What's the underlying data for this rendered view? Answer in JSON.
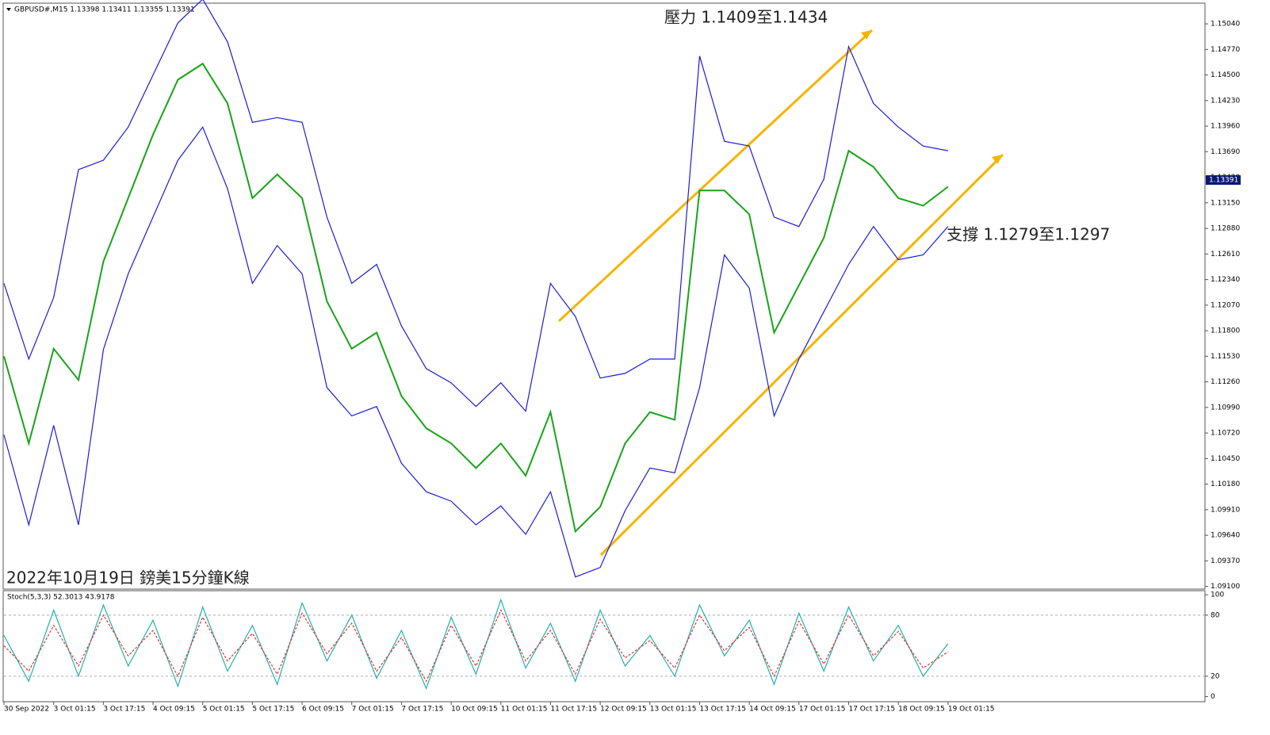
{
  "chart_data": [
    {
      "type": "line",
      "title": "GBPUSD#,M15  1.13398 1.13411 1.13355 1.13391",
      "annotations": [
        "壓力 1.1409至1.1434",
        "支撐 1.1279至1.1297",
        "2022年10月19日 鎊美15分鐘K線"
      ],
      "last_price": 1.13391,
      "x": [
        0,
        32,
        64,
        96,
        128,
        160,
        192,
        224,
        256,
        288,
        320,
        352,
        384,
        416,
        448,
        480,
        512,
        544,
        576,
        608,
        640,
        672,
        704,
        736,
        768,
        800,
        832,
        864,
        896,
        928,
        960,
        992,
        1024,
        1056,
        1088,
        1120,
        1152,
        1184,
        1216
      ],
      "series": [
        {
          "name": "Close",
          "color": "#19a319",
          "values": [
            1.1153,
            1.1061,
            1.1161,
            1.1128,
            1.1253,
            1.132,
            1.1387,
            1.1445,
            1.1462,
            1.142,
            1.132,
            1.1345,
            1.132,
            1.1211,
            1.1161,
            1.1178,
            1.1111,
            1.1077,
            1.1061,
            1.1035,
            1.1061,
            1.1027,
            1.1094,
            1.0968,
            1.0994,
            1.1061,
            1.1094,
            1.1086,
            1.1328,
            1.1328,
            1.1303,
            1.1178,
            1.1228,
            1.1278,
            1.137,
            1.1353,
            1.132,
            1.1312,
            1.1332
          ]
        },
        {
          "name": "Upper",
          "color": "#1c1cd6",
          "values": [
            1.123,
            1.115,
            1.1215,
            1.135,
            1.136,
            1.1395,
            1.145,
            1.1505,
            1.153,
            1.1485,
            1.14,
            1.1405,
            1.14,
            1.13,
            1.123,
            1.125,
            1.1185,
            1.114,
            1.1125,
            1.11,
            1.1125,
            1.1095,
            1.123,
            1.1195,
            1.113,
            1.1135,
            1.115,
            1.115,
            1.147,
            1.138,
            1.1375,
            1.13,
            1.129,
            1.134,
            1.148,
            1.142,
            1.1395,
            1.1375,
            1.137
          ]
        },
        {
          "name": "Lower",
          "color": "#1c1cd6",
          "values": [
            1.107,
            1.0975,
            1.108,
            1.0975,
            1.116,
            1.124,
            1.13,
            1.136,
            1.1395,
            1.133,
            1.123,
            1.127,
            1.124,
            1.112,
            1.109,
            1.11,
            1.104,
            1.101,
            1.1,
            1.0975,
            1.0995,
            1.0965,
            1.101,
            1.092,
            1.093,
            1.099,
            1.1035,
            1.103,
            1.112,
            1.126,
            1.1225,
            1.109,
            1.115,
            1.12,
            1.125,
            1.129,
            1.1255,
            1.126,
            1.129
          ]
        }
      ],
      "xlim": [
        0,
        1547
      ],
      "xticks": [
        {
          "value": 0,
          "label": "30 Sep 2022"
        },
        {
          "value": 64,
          "label": "3 Oct 01:15"
        },
        {
          "value": 128,
          "label": "3 Oct 17:15"
        },
        {
          "value": 192,
          "label": "4 Oct 09:15"
        },
        {
          "value": 256,
          "label": "5 Oct 01:15"
        },
        {
          "value": 320,
          "label": "5 Oct 17:15"
        },
        {
          "value": 384,
          "label": "6 Oct 09:15"
        },
        {
          "value": 448,
          "label": "7 Oct 01:15"
        },
        {
          "value": 512,
          "label": "7 Oct 17:15"
        },
        {
          "value": 576,
          "label": "10 Oct 09:15"
        },
        {
          "value": 640,
          "label": "11 Oct 01:15"
        },
        {
          "value": 704,
          "label": "11 Oct 17:15"
        },
        {
          "value": 768,
          "label": "12 Oct 09:15"
        },
        {
          "value": 832,
          "label": "13 Oct 01:15"
        },
        {
          "value": 896,
          "label": "13 Oct 17:15"
        },
        {
          "value": 960,
          "label": "14 Oct 09:15"
        },
        {
          "value": 1024,
          "label": "17 Oct 01:15"
        },
        {
          "value": 1088,
          "label": "17 Oct 17:15"
        },
        {
          "value": 1152,
          "label": "18 Oct 09:15"
        },
        {
          "value": 1216,
          "label": "19 Oct 01:15"
        }
      ],
      "ylim": [
        1.0908,
        1.1525
      ],
      "yticks": [
        {
          "value": 1.1504,
          "label": "1.15040"
        },
        {
          "value": 1.1477,
          "label": "1.14770"
        },
        {
          "value": 1.145,
          "label": "1.14500"
        },
        {
          "value": 1.1423,
          "label": "1.14230"
        },
        {
          "value": 1.1396,
          "label": "1.13960"
        },
        {
          "value": 1.1369,
          "label": "1.13690"
        },
        {
          "value": 1.1342,
          "label": "1.13420"
        },
        {
          "value": 1.1315,
          "label": "1.13150"
        },
        {
          "value": 1.1288,
          "label": "1.12880"
        },
        {
          "value": 1.1261,
          "label": "1.12610"
        },
        {
          "value": 1.1234,
          "label": "1.12340"
        },
        {
          "value": 1.1207,
          "label": "1.12070"
        },
        {
          "value": 1.118,
          "label": "1.11800"
        },
        {
          "value": 1.1153,
          "label": "1.11530"
        },
        {
          "value": 1.1126,
          "label": "1.11260"
        },
        {
          "value": 1.1099,
          "label": "1.10990"
        },
        {
          "value": 1.1072,
          "label": "1.10720"
        },
        {
          "value": 1.1045,
          "label": "1.10450"
        },
        {
          "value": 1.1018,
          "label": "1.10180"
        },
        {
          "value": 1.0991,
          "label": "1.09910"
        },
        {
          "value": 1.0964,
          "label": "1.09640"
        },
        {
          "value": 1.0937,
          "label": "1.09370"
        },
        {
          "value": 1.091,
          "label": "1.09100"
        }
      ]
    },
    {
      "type": "line",
      "title": "Stoch(5,3,3) 52.3013 43.9178",
      "x": [
        0,
        32,
        64,
        96,
        128,
        160,
        192,
        224,
        256,
        288,
        320,
        352,
        384,
        416,
        448,
        480,
        512,
        544,
        576,
        608,
        640,
        672,
        704,
        736,
        768,
        800,
        832,
        864,
        896,
        928,
        960,
        992,
        1024,
        1056,
        1088,
        1120,
        1152,
        1184,
        1216
      ],
      "series": [
        {
          "name": "Main",
          "color": "#20b2aa",
          "values": [
            60,
            15,
            85,
            20,
            90,
            30,
            75,
            10,
            88,
            25,
            70,
            12,
            92,
            35,
            80,
            18,
            65,
            8,
            78,
            22,
            95,
            28,
            72,
            15,
            85,
            30,
            60,
            20,
            90,
            40,
            75,
            12,
            82,
            25,
            88,
            35,
            70,
            20,
            52
          ]
        },
        {
          "name": "Signal",
          "color": "#e03030",
          "values": [
            50,
            25,
            70,
            30,
            80,
            40,
            65,
            20,
            78,
            35,
            62,
            22,
            82,
            42,
            72,
            25,
            58,
            15,
            70,
            30,
            85,
            35,
            65,
            22,
            76,
            38,
            55,
            28,
            80,
            45,
            68,
            20,
            74,
            32,
            80,
            40,
            64,
            28,
            44
          ]
        }
      ],
      "ylim": [
        -5,
        104
      ],
      "yticks": [
        0,
        20,
        80,
        100
      ]
    }
  ]
}
